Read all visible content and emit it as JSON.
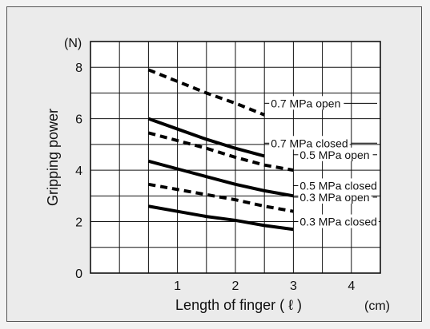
{
  "chart_data": {
    "type": "line",
    "xlabel": "Length of finger ( ℓ )",
    "xunit": "(cm)",
    "ylabel": "Gripping power",
    "yunit": "(N)",
    "xlim": [
      -0.5,
      4.5
    ],
    "ylim": [
      0,
      9
    ],
    "xticks": [
      1,
      2,
      3,
      4
    ],
    "yticks": [
      0,
      2,
      4,
      6,
      8
    ],
    "grid": true,
    "series": [
      {
        "name": "0.7 MPa open",
        "style": "dashed",
        "label_at": [
          2.5,
          6.6
        ],
        "x": [
          0.5,
          1.0,
          1.5,
          2.0,
          2.5
        ],
        "y": [
          7.9,
          7.45,
          7.0,
          6.6,
          6.15
        ]
      },
      {
        "name": "0.7 MPa closed",
        "style": "solid",
        "label_at": [
          2.5,
          5.05
        ],
        "x": [
          0.5,
          1.0,
          1.5,
          2.0,
          2.5
        ],
        "y": [
          6.0,
          5.6,
          5.2,
          4.85,
          4.55
        ]
      },
      {
        "name": "0.5 MPa open",
        "style": "dashed",
        "label_at": [
          3.0,
          4.6
        ],
        "x": [
          0.5,
          1.0,
          1.5,
          2.0,
          2.5,
          3.0
        ],
        "y": [
          5.45,
          5.15,
          4.85,
          4.5,
          4.2,
          4.0
        ]
      },
      {
        "name": "0.5 MPa closed",
        "style": "solid",
        "label_at": [
          3.0,
          3.4
        ],
        "x": [
          0.5,
          1.0,
          1.5,
          2.0,
          2.5,
          3.0
        ],
        "y": [
          4.35,
          4.05,
          3.75,
          3.45,
          3.2,
          3.0
        ]
      },
      {
        "name": "0.3 MPa open",
        "style": "dashed",
        "label_at": [
          3.0,
          2.95
        ],
        "x": [
          0.5,
          1.0,
          1.5,
          2.0,
          2.5,
          3.0
        ],
        "y": [
          3.45,
          3.25,
          3.05,
          2.85,
          2.6,
          2.4
        ]
      },
      {
        "name": "0.3 MPa closed",
        "style": "solid",
        "label_at": [
          3.0,
          2.0
        ],
        "x": [
          0.5,
          1.0,
          1.5,
          2.0,
          2.5,
          3.0
        ],
        "y": [
          2.6,
          2.4,
          2.2,
          2.05,
          1.85,
          1.7
        ]
      }
    ]
  }
}
